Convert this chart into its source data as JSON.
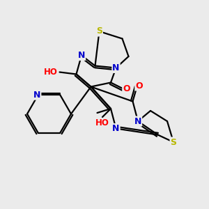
{
  "bg_color": "#ebebeb",
  "atom_colors": {
    "S": "#b8b800",
    "N": "#0000cc",
    "O": "#ff0000",
    "C": "#000000",
    "H": "#007070"
  },
  "bond_color": "#000000",
  "bond_width": 1.6,
  "fig_bg": "#ebebeb"
}
